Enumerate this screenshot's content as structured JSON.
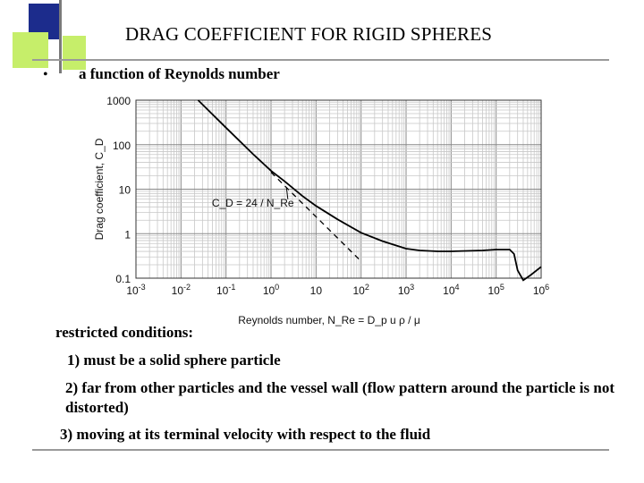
{
  "slide": {
    "title": "DRAG COEFFICIENT FOR RIGID SPHERES",
    "bullet": "a function of Reynolds number",
    "restricted_label": "restricted conditions:",
    "conditions": [
      "1) must be a solid sphere particle",
      "2) far from other particles and the vessel wall (flow pattern around the particle is not distorted)",
      "3) moving at its terminal velocity with respect to the fluid"
    ]
  },
  "chart_data": {
    "type": "line",
    "xscale": "log",
    "yscale": "log",
    "xlim": [
      0.001,
      1000000
    ],
    "ylim": [
      0.1,
      1000
    ],
    "grid": true,
    "ylabel": "Drag coefficient, C_D",
    "xlabel": "Reynolds number, N_Re = D_p u ρ / μ",
    "x_ticks": [
      "10-3",
      "10-2",
      "10-1",
      "10^0",
      "10",
      "10^2",
      "10^3",
      "10^4",
      "10^5",
      "10^6"
    ],
    "y_ticks": [
      "1000",
      "100",
      "10",
      "1",
      "0.1"
    ],
    "annotation": "C_D = 24 / N_Re",
    "series": [
      {
        "style": "solid",
        "x": [
          0.024,
          0.1,
          0.4,
          1,
          2,
          5,
          10,
          30,
          100,
          300,
          1000,
          2000,
          5000,
          10000,
          50000,
          100000,
          200000,
          250000,
          300000,
          400000,
          600000,
          1000000
        ],
        "y": [
          1000,
          240,
          61,
          26,
          15,
          7,
          4.2,
          2.1,
          1.05,
          0.68,
          0.46,
          0.42,
          0.4,
          0.4,
          0.42,
          0.44,
          0.44,
          0.35,
          0.15,
          0.09,
          0.12,
          0.18
        ]
      },
      {
        "style": "dashed",
        "x": [
          1,
          10,
          100
        ],
        "y": [
          24,
          2.4,
          0.24
        ]
      }
    ],
    "colors": {
      "line": "#000000",
      "grid": "#c8c8c8"
    }
  }
}
